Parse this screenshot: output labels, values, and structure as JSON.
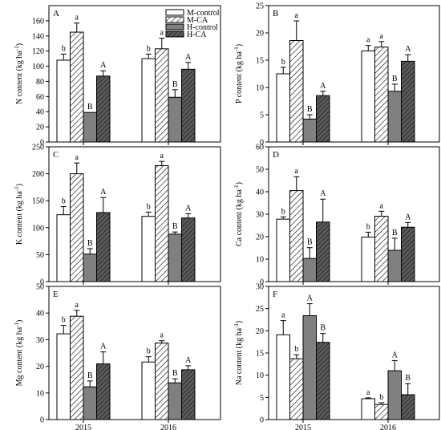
{
  "figure": {
    "legend": {
      "entries": [
        "M-control",
        "M-CA",
        "H-control",
        "H-CA"
      ]
    },
    "colors": {
      "M-control": "#ffffff",
      "M-CA": "hatch-light",
      "H-control": "#808080",
      "H-CA": "hatch-dark"
    }
  },
  "chart_data": [
    {
      "type": "bar",
      "panel": "A",
      "categories": [
        "2015",
        "2016"
      ],
      "ylabel": "N content (kg ha-1)",
      "ylabel_parts": {
        "main": "N content (kg ha",
        "sup": "-1",
        "end": ")"
      },
      "ylim": [
        0,
        180
      ],
      "yticks": [
        0,
        20,
        40,
        60,
        80,
        100,
        120,
        140,
        160
      ],
      "series": [
        {
          "name": "M-control",
          "values": [
            108,
            110
          ],
          "errors": [
            8,
            6
          ],
          "labels": [
            "b",
            "b"
          ]
        },
        {
          "name": "M-CA",
          "values": [
            145,
            123
          ],
          "errors": [
            12,
            14
          ],
          "labels": [
            "a",
            "a"
          ]
        },
        {
          "name": "H-control",
          "values": [
            39,
            59
          ],
          "errors": [
            0,
            10
          ],
          "labels": [
            "B",
            "B"
          ]
        },
        {
          "name": "H-CA",
          "values": [
            87,
            96
          ],
          "errors": [
            7,
            9
          ],
          "labels": [
            "A",
            "A"
          ]
        }
      ]
    },
    {
      "type": "bar",
      "panel": "B",
      "categories": [
        "2015",
        "2016"
      ],
      "ylabel": "P content (kg ha-1)",
      "ylabel_parts": {
        "main": "P content (kg ha",
        "sup": "-1",
        "end": ")"
      },
      "ylim": [
        0,
        25
      ],
      "yticks": [
        0,
        5,
        10,
        15,
        20,
        25
      ],
      "series": [
        {
          "name": "M-control",
          "values": [
            12.5,
            16.7
          ],
          "errors": [
            1.2,
            1.0
          ],
          "labels": [
            "b",
            "a"
          ]
        },
        {
          "name": "M-CA",
          "values": [
            18.6,
            17.4
          ],
          "errors": [
            3.6,
            1.0
          ],
          "labels": [
            "a",
            "a"
          ]
        },
        {
          "name": "H-control",
          "values": [
            4.2,
            9.3
          ],
          "errors": [
            0.8,
            1.3
          ],
          "labels": [
            "B",
            "B"
          ]
        },
        {
          "name": "H-CA",
          "values": [
            8.5,
            14.8
          ],
          "errors": [
            0.8,
            1.2
          ],
          "labels": [
            "A",
            "A"
          ]
        }
      ]
    },
    {
      "type": "bar",
      "panel": "C",
      "categories": [
        "2015",
        "2016"
      ],
      "ylabel": "K content (kg ha-1)",
      "ylabel_parts": {
        "main": "K content (kg ha",
        "sup": "-1",
        "end": ")"
      },
      "ylim": [
        0,
        250
      ],
      "yticks": [
        0,
        50,
        100,
        150,
        200,
        250
      ],
      "series": [
        {
          "name": "M-control",
          "values": [
            124,
            121
          ],
          "errors": [
            15,
            8
          ],
          "labels": [
            "b",
            "b"
          ]
        },
        {
          "name": "M-CA",
          "values": [
            200,
            215
          ],
          "errors": [
            20,
            8
          ],
          "labels": [
            "a",
            "a"
          ]
        },
        {
          "name": "H-control",
          "values": [
            51,
            88
          ],
          "errors": [
            10,
            4
          ],
          "labels": [
            "B",
            "B"
          ]
        },
        {
          "name": "H-CA",
          "values": [
            128,
            118
          ],
          "errors": [
            28,
            8
          ],
          "labels": [
            "A",
            "A"
          ]
        }
      ]
    },
    {
      "type": "bar",
      "panel": "D",
      "categories": [
        "2015",
        "2016"
      ],
      "ylabel": "Ca content (kg ha-1)",
      "ylabel_parts": {
        "main": "Ca content (kg ha",
        "sup": "-1",
        "end": ")"
      },
      "ylim": [
        0,
        60
      ],
      "yticks": [
        0,
        10,
        20,
        30,
        40,
        50,
        60
      ],
      "series": [
        {
          "name": "M-control",
          "values": [
            27.8,
            19.8
          ],
          "errors": [
            1.0,
            2.2
          ],
          "labels": [
            "b",
            "b"
          ]
        },
        {
          "name": "M-CA",
          "values": [
            40.5,
            29.1
          ],
          "errors": [
            6.2,
            2.2
          ],
          "labels": [
            "a",
            "a"
          ]
        },
        {
          "name": "H-control",
          "values": [
            10.3,
            13.9
          ],
          "errors": [
            4.8,
            5.4
          ],
          "labels": [
            "B",
            "B"
          ]
        },
        {
          "name": "H-CA",
          "values": [
            26.5,
            24.2
          ],
          "errors": [
            10.2,
            2.1
          ],
          "labels": [
            "A",
            "A"
          ]
        }
      ]
    },
    {
      "type": "bar",
      "panel": "E",
      "categories": [
        "2015",
        "2016"
      ],
      "ylabel": "Mg content (kg ha-1)",
      "ylabel_parts": {
        "main": "Mg content (kg ha",
        "sup": "-1",
        "end": ")"
      },
      "ylim": [
        0,
        50
      ],
      "yticks": [
        0,
        10,
        20,
        30,
        40,
        50
      ],
      "series": [
        {
          "name": "M-control",
          "values": [
            32.2,
            21.6
          ],
          "errors": [
            3.2,
            2.0
          ],
          "labels": [
            "b",
            "b"
          ]
        },
        {
          "name": "M-CA",
          "values": [
            38.8,
            28.7
          ],
          "errors": [
            2.2,
            0.9
          ],
          "labels": [
            "a",
            "a"
          ]
        },
        {
          "name": "H-control",
          "values": [
            12.3,
            13.8
          ],
          "errors": [
            2.2,
            1.5
          ],
          "labels": [
            "B",
            "B"
          ]
        },
        {
          "name": "H-CA",
          "values": [
            20.9,
            18.7
          ],
          "errors": [
            4.5,
            1.5
          ],
          "labels": [
            "A",
            "A"
          ]
        }
      ]
    },
    {
      "type": "bar",
      "panel": "F",
      "categories": [
        "2015",
        "2016"
      ],
      "ylabel": "Na content (kg ha-1)",
      "ylabel_parts": {
        "main": "Na content (kg ha",
        "sup": "-1",
        "end": ")"
      },
      "ylim": [
        0,
        30
      ],
      "yticks": [
        0,
        5,
        10,
        15,
        20,
        25,
        30
      ],
      "series": [
        {
          "name": "M-control",
          "values": [
            19.1,
            4.7
          ],
          "errors": [
            3.2,
            0.2
          ],
          "labels": [
            "a",
            "a"
          ]
        },
        {
          "name": "M-CA",
          "values": [
            13.7,
            3.4
          ],
          "errors": [
            0.9,
            0.4
          ],
          "labels": [
            "b",
            "b"
          ]
        },
        {
          "name": "H-control",
          "values": [
            23.4,
            11.0
          ],
          "errors": [
            2.7,
            2.3
          ],
          "labels": [
            "A",
            "A"
          ]
        },
        {
          "name": "H-CA",
          "values": [
            17.4,
            5.6
          ],
          "errors": [
            2.0,
            2.5
          ],
          "labels": [
            "B",
            "B"
          ]
        }
      ]
    }
  ]
}
